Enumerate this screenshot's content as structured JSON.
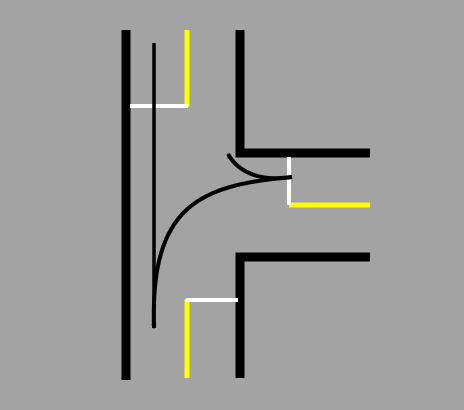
{
  "diagram": {
    "subject": "t-intersection-with-turning-paths",
    "colors": {
      "background": "#a3a3a3",
      "curb": "#000000",
      "center_line": "#ffff00",
      "stop_line": "#ffffff",
      "arrow": "#000000"
    },
    "elements": {
      "main_road": [
        "left-curb",
        "right-curb-upper",
        "right-curb-lower",
        "center-line-north",
        "center-line-south"
      ],
      "side_road": [
        "top-curb",
        "bottom-curb",
        "center-line"
      ],
      "stop_lines": [
        "northbound",
        "southbound",
        "side-road"
      ],
      "paths": [
        "straight-southbound",
        "left-turn-from-side-road",
        "right-turn-from-side-road"
      ]
    }
  }
}
